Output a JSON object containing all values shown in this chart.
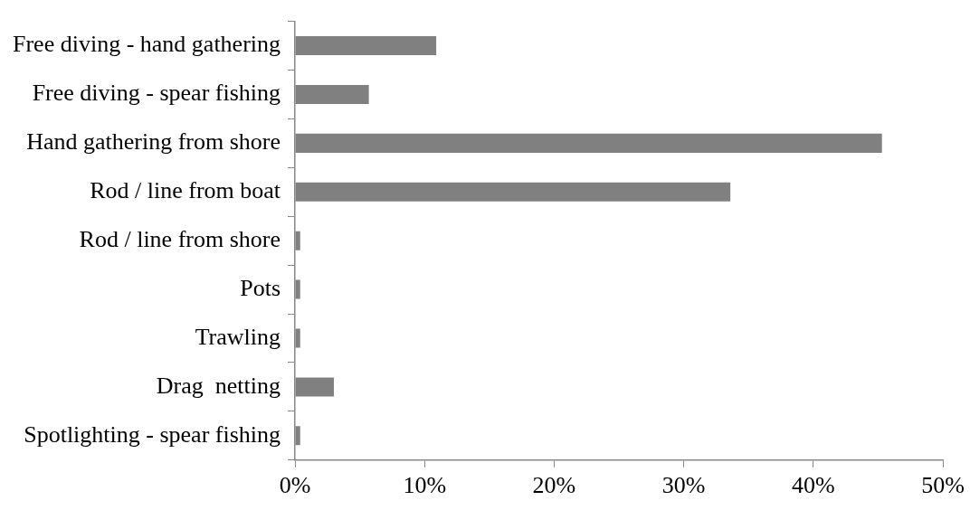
{
  "chart_data": {
    "type": "bar",
    "orientation": "horizontal",
    "categories": [
      "Free diving - hand gathering",
      "Free diving - spear fishing",
      "Hand gathering from shore",
      "Rod / line from boat",
      "Rod / line from shore",
      "Pots",
      "Trawling",
      "Drag  netting",
      "Spotlighting - spear fishing"
    ],
    "values": [
      10.9,
      5.7,
      45.3,
      33.6,
      0.4,
      0.4,
      0.4,
      3.0,
      0.4
    ],
    "color": "#808080",
    "xlim": [
      0,
      50
    ],
    "xticks": [
      {
        "value": 0,
        "label": "0%"
      },
      {
        "value": 10,
        "label": "10%"
      },
      {
        "value": 20,
        "label": "20%"
      },
      {
        "value": 30,
        "label": "30%"
      },
      {
        "value": 40,
        "label": "40%"
      },
      {
        "value": 50,
        "label": "50%"
      }
    ],
    "grid": false,
    "legend": false
  }
}
